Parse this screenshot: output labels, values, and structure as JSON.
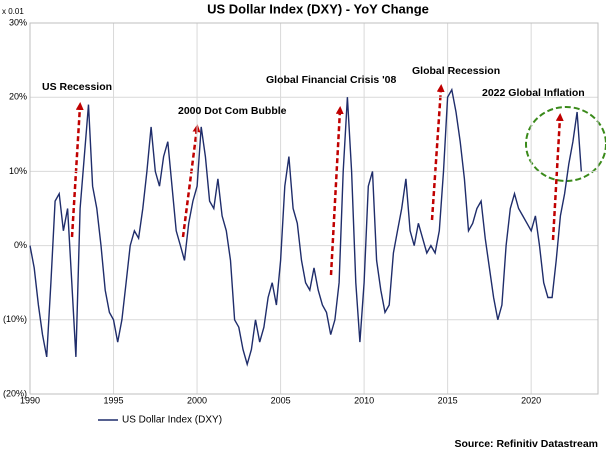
{
  "chart_data": {
    "type": "line",
    "title": "US Dollar Index (DXY) - YoY Change",
    "y_unit_label": "x 0.01",
    "source": "Source: Refinitiv Datastream",
    "annotations": [
      "US Recession",
      "2000 Dot Com Bubble",
      "Global Financial Crisis '08",
      "Global Recession",
      "2022 Global Inflation"
    ],
    "x": [
      1990.0,
      1990.25,
      1990.5,
      1990.75,
      1991.0,
      1991.25,
      1991.5,
      1991.75,
      1992.0,
      1992.25,
      1992.5,
      1992.75,
      1993.0,
      1993.25,
      1993.5,
      1993.75,
      1994.0,
      1994.25,
      1994.5,
      1994.75,
      1995.0,
      1995.25,
      1995.5,
      1995.75,
      1996.0,
      1996.25,
      1996.5,
      1996.75,
      1997.0,
      1997.25,
      1997.5,
      1997.75,
      1998.0,
      1998.25,
      1998.5,
      1998.75,
      1999.0,
      1999.25,
      1999.5,
      1999.75,
      2000.0,
      2000.25,
      2000.5,
      2000.75,
      2001.0,
      2001.25,
      2001.5,
      2001.75,
      2002.0,
      2002.25,
      2002.5,
      2002.75,
      2003.0,
      2003.25,
      2003.5,
      2003.75,
      2004.0,
      2004.25,
      2004.5,
      2004.75,
      2005.0,
      2005.25,
      2005.5,
      2005.75,
      2006.0,
      2006.25,
      2006.5,
      2006.75,
      2007.0,
      2007.25,
      2007.5,
      2007.75,
      2008.0,
      2008.25,
      2008.5,
      2008.75,
      2009.0,
      2009.25,
      2009.5,
      2009.75,
      2010.0,
      2010.25,
      2010.5,
      2010.75,
      2011.0,
      2011.25,
      2011.5,
      2011.75,
      2012.0,
      2012.25,
      2012.5,
      2012.75,
      2013.0,
      2013.25,
      2013.5,
      2013.75,
      2014.0,
      2014.25,
      2014.5,
      2014.75,
      2015.0,
      2015.25,
      2015.5,
      2015.75,
      2016.0,
      2016.25,
      2016.5,
      2016.75,
      2017.0,
      2017.25,
      2017.5,
      2017.75,
      2018.0,
      2018.25,
      2018.5,
      2018.75,
      2019.0,
      2019.25,
      2019.5,
      2019.75,
      2020.0,
      2020.25,
      2020.5,
      2020.75,
      2021.0,
      2021.25,
      2021.5,
      2021.75,
      2022.0,
      2022.25,
      2022.5,
      2022.75,
      2023.0
    ],
    "series": [
      {
        "name": "US Dollar Index (DXY)",
        "color": "#1f2d6b",
        "values": [
          0,
          -3,
          -8,
          -12,
          -15,
          -5,
          6,
          7,
          2,
          5,
          -5,
          -15,
          5,
          12,
          19,
          8,
          5,
          0,
          -6,
          -9,
          -10,
          -13,
          -10,
          -5,
          0,
          2,
          1,
          5,
          10,
          16,
          10,
          8,
          12,
          14,
          8,
          2,
          0,
          -2,
          3,
          6,
          8,
          16,
          12,
          6,
          5,
          9,
          4,
          2,
          -2,
          -10,
          -11,
          -14,
          -16,
          -14,
          -10,
          -13,
          -11,
          -7,
          -5,
          -8,
          -2,
          8,
          12,
          5,
          3,
          -2,
          -5,
          -6,
          -3,
          -6,
          -8,
          -9,
          -12,
          -10,
          -5,
          10,
          20,
          10,
          -5,
          -13,
          -5,
          8,
          10,
          -2,
          -6,
          -9,
          -8,
          -1,
          2,
          5,
          9,
          2,
          0,
          3,
          1,
          -1,
          0,
          -1,
          2,
          10,
          20,
          21,
          18,
          14,
          9,
          2,
          3,
          5,
          6,
          1,
          -3,
          -7,
          -10,
          -8,
          0,
          5,
          7,
          5,
          4,
          3,
          2,
          4,
          0,
          -5,
          -7,
          -7,
          -2,
          4,
          7,
          11,
          14,
          18,
          10
        ]
      }
    ],
    "xlim": [
      1990,
      2024
    ],
    "xticks": [
      1990,
      1995,
      2000,
      2005,
      2010,
      2015,
      2020
    ],
    "ylim": [
      -20,
      30
    ],
    "yticks": [
      {
        "value": -20,
        "label": "(20%)"
      },
      {
        "value": -10,
        "label": "(10%)"
      },
      {
        "value": 0,
        "label": "0%"
      },
      {
        "value": 10,
        "label": "10%"
      },
      {
        "value": 20,
        "label": "20%"
      },
      {
        "value": 30,
        "label": "30%"
      }
    ],
    "grid": true
  }
}
